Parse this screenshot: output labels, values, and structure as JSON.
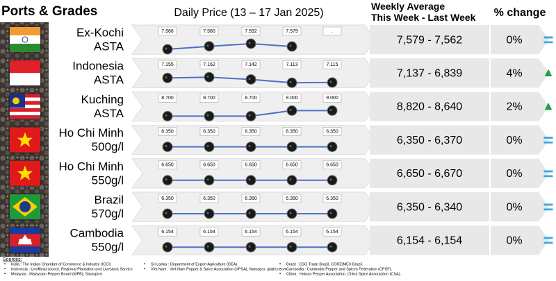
{
  "header": {
    "ports": "Ports & Grades",
    "daily": "Daily Price (13 – 17 Jan 2025)",
    "weekly": "Weekly Average\nThis Week - Last Week",
    "change": "% change"
  },
  "rows": [
    {
      "port": "Ex-Kochi",
      "grade": "ASTA",
      "flag": "india",
      "daily": [
        "7.566",
        "7.580",
        "7.592",
        "7.579",
        "."
      ],
      "weekly": "7,579 - 7,562",
      "change": "0%",
      "trend": "="
    },
    {
      "port": "Indonesia",
      "grade": "ASTA",
      "flag": "indonesia",
      "daily": [
        "7.155",
        "7.162",
        "7.142",
        "7.113",
        "7.115"
      ],
      "weekly": "7,137 - 6,839",
      "change": "4%",
      "trend": "▲"
    },
    {
      "port": "Kuching",
      "grade": "ASTA",
      "flag": "malaysia",
      "daily": [
        "8.700",
        "8.700",
        "8.700",
        "9.000",
        "9.000"
      ],
      "weekly": "8,820 - 8,640",
      "change": "2%",
      "trend": "▲"
    },
    {
      "port": "Ho Chi Minh",
      "grade": "500g/l",
      "flag": "vietnam",
      "daily": [
        "6.350",
        "6.350",
        "6.350",
        "6.350",
        "6.350"
      ],
      "weekly": "6,350 - 6,370",
      "change": "0%",
      "trend": "="
    },
    {
      "port": "Ho Chi Minh",
      "grade": "550g/l",
      "flag": "vietnam",
      "daily": [
        "6.650",
        "6.650",
        "6.650",
        "6.650",
        "6.650"
      ],
      "weekly": "6,650 - 6,670",
      "change": "0%",
      "trend": "="
    },
    {
      "port": "Brazil",
      "grade": "570g/l",
      "flag": "brazil",
      "daily": [
        "6.350",
        "6.350",
        "6.350",
        "6.350",
        "6.350"
      ],
      "weekly": "6,350 - 6,340",
      "change": "0%",
      "trend": "="
    },
    {
      "port": "Cambodia",
      "grade": "550g/l",
      "flag": "cambodia",
      "daily": [
        "6.154",
        "6.154",
        "6.154",
        "6.154",
        "6.154"
      ],
      "weekly": "6,154 - 6,154",
      "change": "0%",
      "trend": "="
    }
  ],
  "sources": {
    "title": "Sources:",
    "items": [
      "India : The Indian Chamber of Commerce & Industry (ICCI)",
      "Indonesia : Unofficial source, Regional Plantation and Livestock Service.",
      "Malaysia : Malaysian Pepper Board (MPB), Saraspice.",
      "Sri Lanka : Department of Export Agriculture (DEA).",
      "Viet Nam : Viet Nam Pepper & Spice Association (VPSA), Namagro. giatieu.com.",
      "Brazil : CSG Trade Brazil, COREIMEX Brazil.",
      "Cambodia : Cambodia Pepper and Spices Federation (CPSF).",
      "China : Hainan Pepper Association, China Spice Association (CSA)."
    ]
  }
}
